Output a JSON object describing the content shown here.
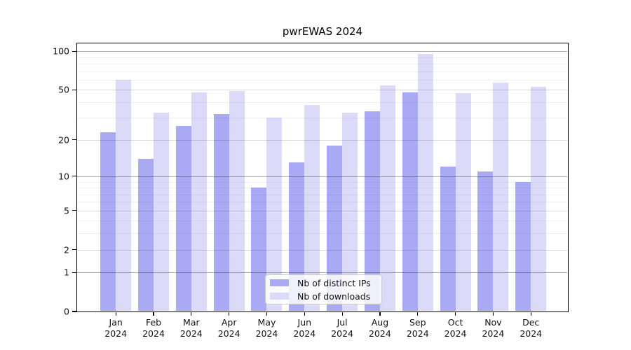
{
  "title": "pwrEWAS 2024",
  "chart_data": {
    "type": "bar",
    "title": "pwrEWAS 2024",
    "year": "2024",
    "categories": [
      "Jan",
      "Feb",
      "Mar",
      "Apr",
      "May",
      "Jun",
      "Jul",
      "Aug",
      "Sep",
      "Oct",
      "Nov",
      "Dec"
    ],
    "series": [
      {
        "name": "Nb of distinct IPs",
        "color": "#a9a9f4",
        "values": [
          23,
          14,
          26,
          32,
          8,
          13,
          18,
          34,
          48,
          12,
          11,
          9
        ]
      },
      {
        "name": "Nb of downloads",
        "color": "#dbdbf9",
        "values": [
          60,
          33,
          48,
          49,
          30,
          38,
          33,
          54,
          95,
          47,
          57,
          53
        ]
      }
    ],
    "xlabel": "",
    "ylabel": "",
    "yscale": "log1p",
    "yticks": [
      0,
      1,
      2,
      5,
      10,
      20,
      50,
      100
    ],
    "minor_yticks": [
      3,
      4,
      6,
      7,
      8,
      9,
      30,
      40,
      60,
      70,
      80,
      90
    ],
    "ylim": [
      0,
      115
    ],
    "grid": "on",
    "legend_position": "inside-bottom-center"
  }
}
